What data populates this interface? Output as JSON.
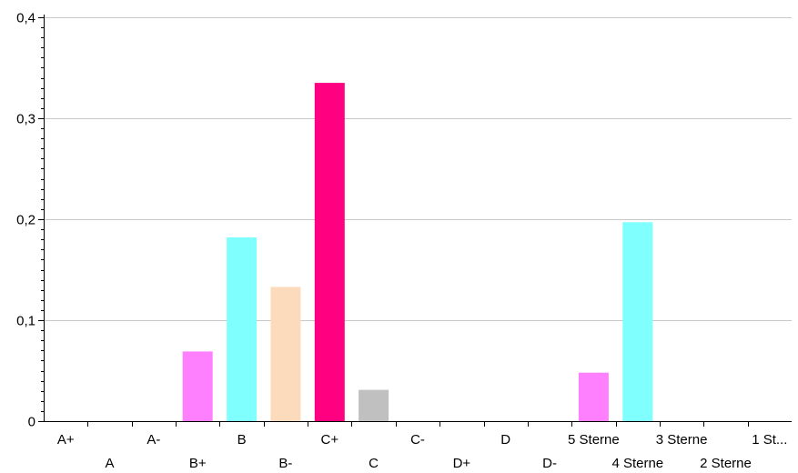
{
  "chart_data": {
    "type": "bar",
    "categories": [
      "A+",
      "A",
      "A-",
      "B+",
      "B",
      "B-",
      "C+",
      "C",
      "C-",
      "D+",
      "D",
      "D-",
      "5 Sterne",
      "4 Sterne",
      "3 Sterne",
      "2 Sterne",
      "1 St..."
    ],
    "values": [
      0,
      0,
      0,
      0.069,
      0.182,
      0.133,
      0.335,
      0.031,
      0,
      0,
      0,
      0,
      0.048,
      0.197,
      0,
      0,
      0
    ],
    "bar_colors": [
      "#000000",
      "#000000",
      "#000000",
      "#ff80ff",
      "#80ffff",
      "#fcdbbc",
      "#ff0080",
      "#c0c0c0",
      "#000000",
      "#000000",
      "#000000",
      "#000000",
      "#ff80ff",
      "#80ffff",
      "#000000",
      "#000000",
      "#000000"
    ],
    "ylim": [
      0,
      0.4
    ],
    "yticks": [
      0,
      0.1,
      0.2,
      0.3,
      0.4
    ],
    "ytick_labels": [
      "0",
      "0,1",
      "0,2",
      "0,3",
      "0,4"
    ],
    "grid": true,
    "title": "",
    "xlabel": "",
    "ylabel": ""
  }
}
